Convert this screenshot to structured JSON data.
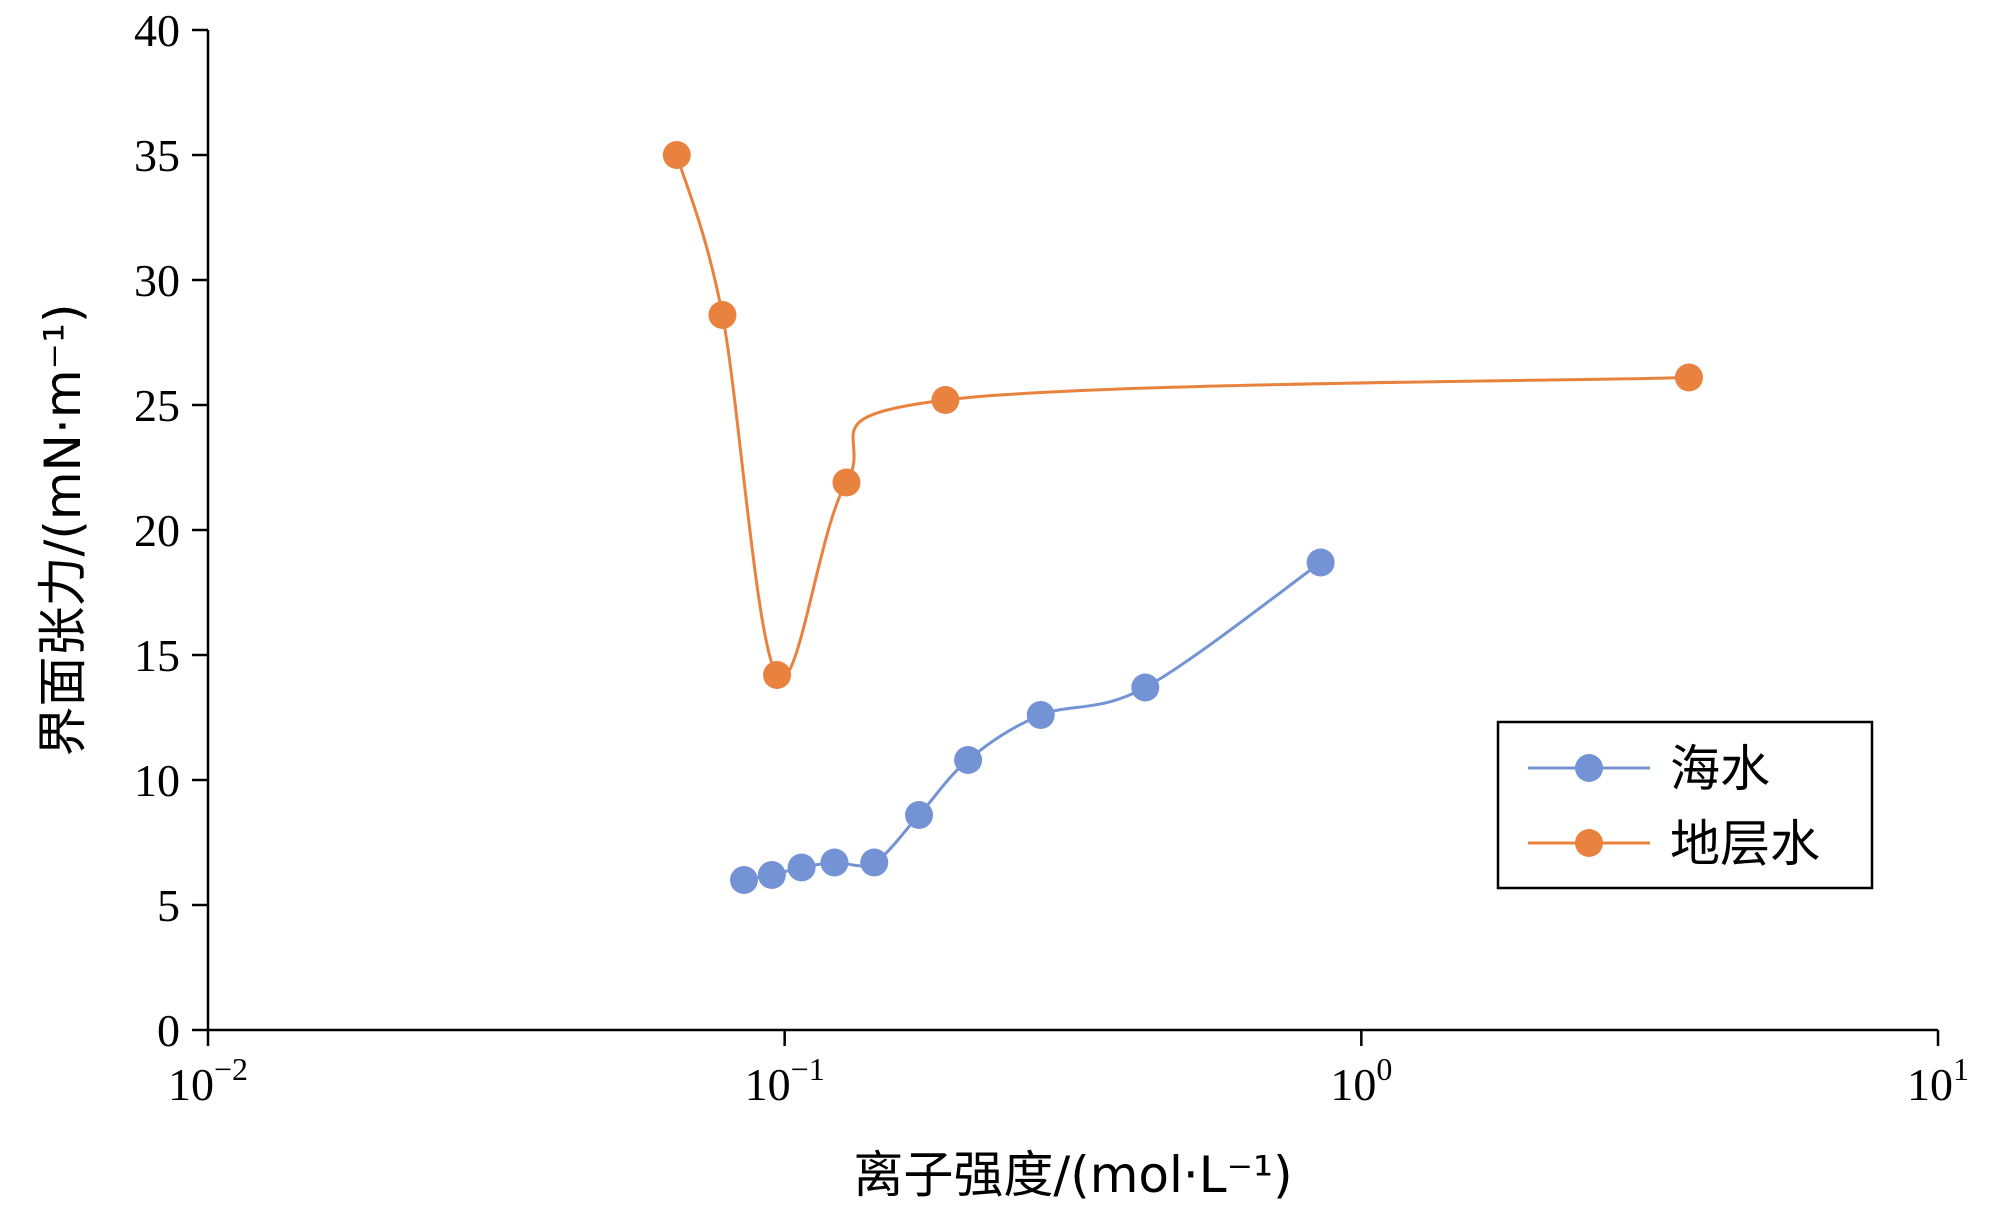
{
  "chart_data": {
    "type": "line",
    "xlabel": "离子强度/(mol·L⁻¹)",
    "ylabel": "界面张力/(mN·m⁻¹)",
    "x_scale": "log",
    "xlim": [
      0.01,
      10
    ],
    "ylim": [
      0,
      40
    ],
    "y_ticks": [
      0,
      5,
      10,
      15,
      20,
      25,
      30,
      35,
      40
    ],
    "x_ticks": [
      {
        "value": 0.01,
        "base": "10",
        "exp": "−2"
      },
      {
        "value": 0.1,
        "base": "10",
        "exp": "−1"
      },
      {
        "value": 1,
        "base": "10",
        "exp": "0"
      },
      {
        "value": 10,
        "base": "10",
        "exp": "1"
      }
    ],
    "grid": false,
    "smooth": true,
    "legend_position": "bottom-right",
    "series": [
      {
        "name": "海水",
        "color": "#7393D4",
        "x": [
          0.085,
          0.095,
          0.107,
          0.122,
          0.143,
          0.171,
          0.208,
          0.278,
          0.422,
          0.85
        ],
        "y": [
          6.0,
          6.2,
          6.5,
          6.7,
          6.7,
          8.6,
          10.8,
          12.6,
          13.7,
          18.7
        ]
      },
      {
        "name": "地层水",
        "color": "#E8823E",
        "x": [
          0.065,
          0.078,
          0.097,
          0.128,
          0.19,
          3.7
        ],
        "y": [
          35.0,
          28.6,
          14.2,
          21.9,
          25.2,
          26.1
        ]
      }
    ]
  }
}
